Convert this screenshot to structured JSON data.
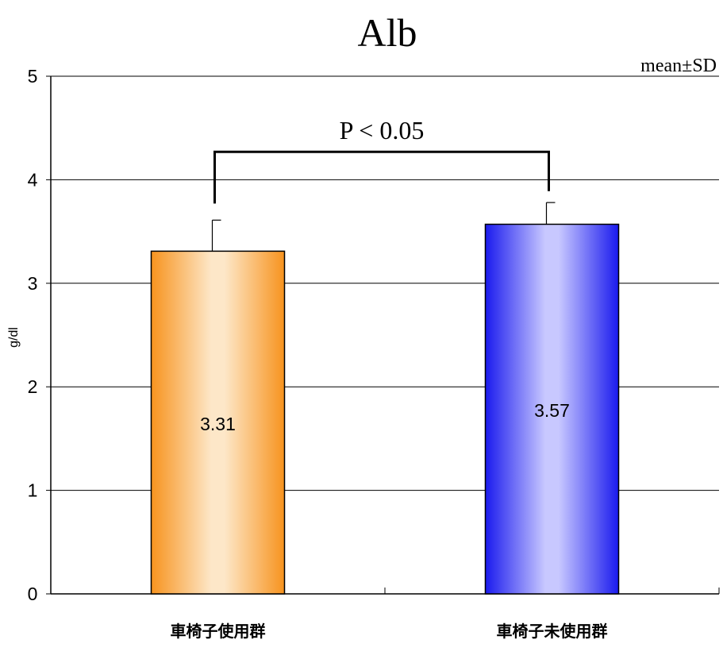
{
  "chart_data": {
    "type": "bar",
    "title": "Alb",
    "note": "mean±SD",
    "ylabel": "g/dl",
    "xlabel": "",
    "ylim": [
      0,
      5
    ],
    "yticks": [
      0,
      1,
      2,
      3,
      4,
      5
    ],
    "grid": true,
    "categories": [
      "車椅子使用群",
      "車椅子未使用群"
    ],
    "values": [
      3.31,
      3.57
    ],
    "errors": [
      0.3,
      0.21
    ],
    "data_labels": [
      "3.31",
      "3.57"
    ],
    "significance": {
      "label": "P < 0.05",
      "between": [
        0,
        1
      ]
    },
    "colors": {
      "bar1_edge": "#f7931e",
      "bar1_center": "#fde7c8",
      "bar2_edge": "#1a1aee",
      "bar2_center": "#c8c8ff"
    }
  }
}
